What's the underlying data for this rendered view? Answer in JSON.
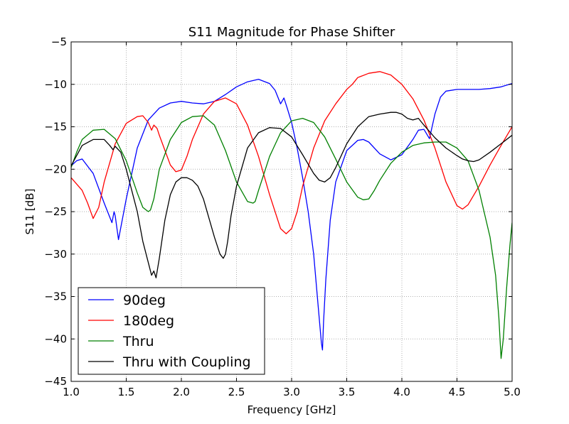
{
  "chart_data": {
    "type": "line",
    "title": "S11 Magnitude for Phase Shifter",
    "xlabel": "Frequency [GHz]",
    "ylabel": "S11 [dB]",
    "xlim": [
      1.0,
      5.0
    ],
    "ylim": [
      -45,
      -5
    ],
    "xticks": [
      1.0,
      1.5,
      2.0,
      2.5,
      3.0,
      3.5,
      4.0,
      4.5,
      5.0
    ],
    "xtick_labels": [
      "1.0",
      "1.5",
      "2.0",
      "2.5",
      "3.0",
      "3.5",
      "4.0",
      "4.5",
      "5.0"
    ],
    "yticks": [
      -45,
      -40,
      -35,
      -30,
      -25,
      -20,
      -15,
      -10,
      -5
    ],
    "ytick_labels": [
      "−45",
      "−40",
      "−35",
      "−30",
      "−25",
      "−20",
      "−15",
      "−10",
      "−5"
    ],
    "grid": true,
    "legend_position": "lower-left",
    "series": [
      {
        "name": "90deg",
        "color": "#0000ff",
        "x": [
          1.0,
          1.05,
          1.1,
          1.2,
          1.3,
          1.37,
          1.39,
          1.4,
          1.43,
          1.5,
          1.6,
          1.7,
          1.8,
          1.9,
          2.0,
          2.1,
          2.2,
          2.3,
          2.4,
          2.5,
          2.6,
          2.7,
          2.8,
          2.85,
          2.9,
          2.93,
          2.96,
          3.0,
          3.05,
          3.1,
          3.15,
          3.2,
          3.24,
          3.27,
          3.28,
          3.29,
          3.31,
          3.35,
          3.4,
          3.5,
          3.6,
          3.65,
          3.7,
          3.8,
          3.9,
          4.0,
          4.1,
          4.15,
          4.2,
          4.25,
          4.3,
          4.35,
          4.4,
          4.5,
          4.6,
          4.7,
          4.8,
          4.9,
          5.0
        ],
        "y": [
          -19.6,
          -19.0,
          -18.8,
          -20.5,
          -24.0,
          -26.3,
          -25.0,
          -25.5,
          -28.3,
          -23.5,
          -17.5,
          -14.2,
          -12.8,
          -12.2,
          -12.0,
          -12.2,
          -12.3,
          -12.0,
          -11.2,
          -10.3,
          -9.7,
          -9.4,
          -9.9,
          -10.7,
          -12.3,
          -11.6,
          -12.8,
          -14.5,
          -17.5,
          -21.0,
          -25.0,
          -30.0,
          -36.0,
          -40.5,
          -41.3,
          -38.0,
          -33.0,
          -26.0,
          -21.5,
          -17.8,
          -16.6,
          -16.5,
          -16.8,
          -18.2,
          -18.9,
          -18.3,
          -16.5,
          -15.4,
          -15.3,
          -16.4,
          -13.5,
          -11.5,
          -10.8,
          -10.6,
          -10.6,
          -10.6,
          -10.5,
          -10.3,
          -9.9
        ]
      },
      {
        "name": "180deg",
        "color": "#ff0000",
        "x": [
          1.0,
          1.1,
          1.15,
          1.2,
          1.25,
          1.3,
          1.4,
          1.5,
          1.6,
          1.65,
          1.7,
          1.73,
          1.75,
          1.78,
          1.8,
          1.9,
          1.95,
          2.0,
          2.05,
          2.1,
          2.2,
          2.3,
          2.4,
          2.5,
          2.6,
          2.7,
          2.8,
          2.9,
          2.95,
          3.0,
          3.05,
          3.1,
          3.2,
          3.3,
          3.4,
          3.5,
          3.55,
          3.6,
          3.7,
          3.8,
          3.9,
          4.0,
          4.1,
          4.2,
          4.3,
          4.4,
          4.5,
          4.55,
          4.6,
          4.7,
          4.8,
          4.9,
          5.0
        ],
        "y": [
          -21.0,
          -22.5,
          -24.0,
          -25.8,
          -24.5,
          -21.5,
          -17.0,
          -14.6,
          -13.8,
          -13.7,
          -14.5,
          -15.4,
          -14.8,
          -15.2,
          -16.0,
          -19.5,
          -20.3,
          -20.1,
          -18.5,
          -16.5,
          -13.5,
          -12.0,
          -11.6,
          -12.3,
          -14.8,
          -18.5,
          -23.0,
          -27.0,
          -27.6,
          -27.0,
          -25.0,
          -22.0,
          -17.5,
          -14.3,
          -12.3,
          -10.6,
          -10.0,
          -9.2,
          -8.7,
          -8.5,
          -8.9,
          -10.0,
          -11.7,
          -14.2,
          -17.5,
          -21.5,
          -24.3,
          -24.7,
          -24.2,
          -22.0,
          -19.5,
          -17.2,
          -15.0
        ]
      },
      {
        "name": "Thru",
        "color": "#008000",
        "x": [
          1.0,
          1.05,
          1.1,
          1.2,
          1.3,
          1.4,
          1.5,
          1.6,
          1.65,
          1.7,
          1.72,
          1.75,
          1.8,
          1.9,
          2.0,
          2.1,
          2.2,
          2.3,
          2.4,
          2.5,
          2.6,
          2.65,
          2.67,
          2.7,
          2.8,
          2.9,
          3.0,
          3.1,
          3.2,
          3.3,
          3.4,
          3.5,
          3.6,
          3.65,
          3.7,
          3.75,
          3.8,
          3.9,
          4.0,
          4.1,
          4.2,
          4.3,
          4.4,
          4.5,
          4.6,
          4.7,
          4.8,
          4.85,
          4.88,
          4.9,
          4.92,
          4.95,
          4.98,
          5.0
        ],
        "y": [
          -19.8,
          -18.0,
          -16.5,
          -15.4,
          -15.3,
          -16.4,
          -19.0,
          -22.8,
          -24.5,
          -25.0,
          -24.8,
          -23.5,
          -20.0,
          -16.5,
          -14.5,
          -13.8,
          -13.7,
          -14.8,
          -17.8,
          -21.5,
          -23.8,
          -24.0,
          -23.8,
          -22.5,
          -18.5,
          -15.7,
          -14.3,
          -14.0,
          -14.5,
          -16.2,
          -18.8,
          -21.5,
          -23.3,
          -23.6,
          -23.5,
          -22.5,
          -21.3,
          -19.3,
          -18.0,
          -17.2,
          -16.9,
          -16.8,
          -16.8,
          -17.5,
          -19.0,
          -22.5,
          -28.0,
          -32.5,
          -37.5,
          -42.3,
          -40.0,
          -34.0,
          -29.0,
          -26.3
        ]
      },
      {
        "name": "Thru with Coupling",
        "color": "#000000",
        "x": [
          1.0,
          1.1,
          1.2,
          1.3,
          1.35,
          1.38,
          1.4,
          1.45,
          1.5,
          1.6,
          1.65,
          1.7,
          1.73,
          1.75,
          1.77,
          1.8,
          1.85,
          1.9,
          1.95,
          2.0,
          2.05,
          2.1,
          2.15,
          2.2,
          2.3,
          2.35,
          2.38,
          2.4,
          2.42,
          2.45,
          2.5,
          2.6,
          2.7,
          2.8,
          2.9,
          3.0,
          3.1,
          3.2,
          3.25,
          3.3,
          3.35,
          3.4,
          3.5,
          3.6,
          3.7,
          3.8,
          3.9,
          3.95,
          4.0,
          4.05,
          4.1,
          4.15,
          4.2,
          4.3,
          4.4,
          4.5,
          4.55,
          4.6,
          4.65,
          4.7,
          4.8,
          4.9,
          5.0
        ],
        "y": [
          -19.6,
          -17.2,
          -16.5,
          -16.5,
          -17.2,
          -17.7,
          -17.3,
          -18.0,
          -20.0,
          -25.0,
          -28.5,
          -31.0,
          -32.5,
          -32.0,
          -32.8,
          -30.5,
          -26.0,
          -23.0,
          -21.5,
          -21.0,
          -21.0,
          -21.3,
          -22.0,
          -23.5,
          -28.0,
          -30.0,
          -30.5,
          -30.0,
          -28.5,
          -25.5,
          -22.0,
          -17.5,
          -15.7,
          -15.1,
          -15.2,
          -16.2,
          -18.3,
          -20.5,
          -21.3,
          -21.5,
          -21.0,
          -19.8,
          -17.0,
          -15.0,
          -13.8,
          -13.5,
          -13.3,
          -13.3,
          -13.5,
          -14.0,
          -14.2,
          -14.0,
          -14.8,
          -16.3,
          -17.5,
          -18.4,
          -18.8,
          -19.0,
          -19.1,
          -18.9,
          -18.0,
          -17.0,
          -16.0
        ]
      }
    ]
  }
}
